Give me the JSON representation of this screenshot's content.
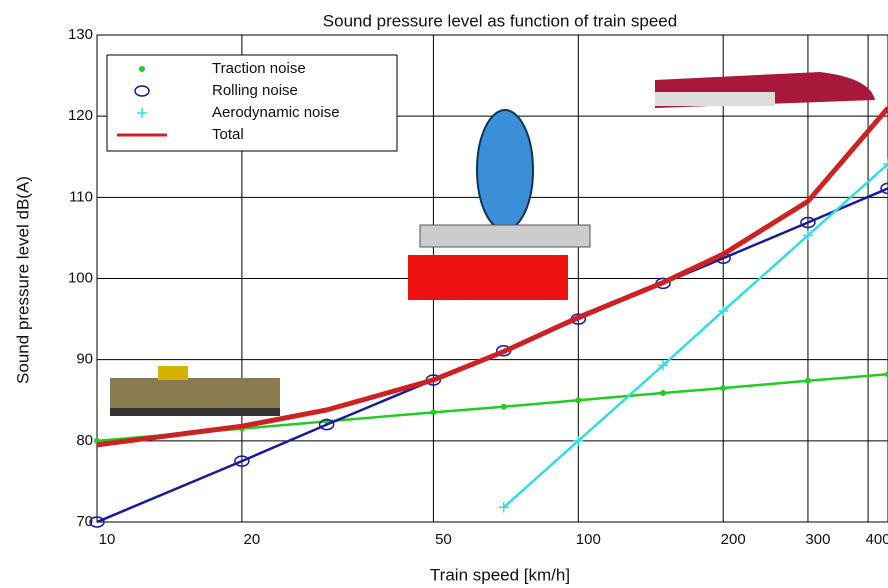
{
  "chart_data": {
    "type": "line",
    "title": "Sound pressure level as function of train speed",
    "x_label": "Train speed [km/h]",
    "y_label": "Sound pressure level dB(A)",
    "x": [
      10,
      20,
      30,
      50,
      70,
      100,
      150,
      200,
      300,
      440
    ],
    "xlim": [
      10,
      440
    ],
    "ylim": [
      70,
      130
    ],
    "xticks": [
      10,
      20,
      50,
      100,
      200,
      300,
      400
    ],
    "yticks": [
      70,
      80,
      90,
      100,
      110,
      120,
      130
    ],
    "x_scale": "log",
    "grid": true,
    "legend": "upper-left",
    "series": [
      {
        "name": "Traction noise",
        "color": "#22cc22",
        "marker": "dot",
        "values": [
          80,
          81.5,
          82.4,
          83.5,
          84.2,
          85,
          85.9,
          86.5,
          87.4,
          88.2
        ]
      },
      {
        "name": "Rolling noise",
        "color": "#1a1a99",
        "marker": "circle",
        "values": [
          70,
          77.5,
          82,
          87.5,
          91.1,
          95,
          99.4,
          102.5,
          106.9,
          111.1
        ]
      },
      {
        "name": "Aerodynamic noise",
        "color": "#33dddd",
        "marker": "plus",
        "values": [
          null,
          null,
          null,
          null,
          71.8,
          80,
          89.3,
          96,
          105.3,
          114.1
        ]
      },
      {
        "name": "Total",
        "color": "#cc2222",
        "marker": "none",
        "values": [
          79.5,
          81.8,
          83.8,
          87.5,
          91,
          95.2,
          99.5,
          103,
          109.5,
          121
        ]
      }
    ]
  }
}
